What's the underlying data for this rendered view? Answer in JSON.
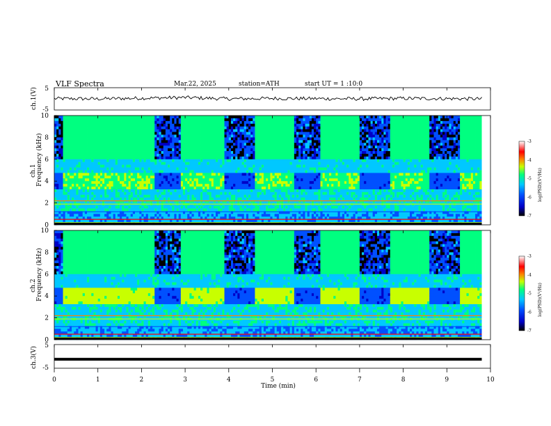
{
  "header": {
    "title": "VLF Spectra",
    "date": "Mar.22, 2025",
    "station": "station=ATH",
    "start": "start UT =  1 :10:0"
  },
  "chart_data": [
    {
      "type": "line",
      "name": "ch1-waveform",
      "ylabel": "ch.1(V)",
      "ylim": [
        -5,
        5
      ],
      "yticks": [
        "5",
        "-5"
      ],
      "xlim": [
        0,
        10
      ],
      "x": [
        0,
        1,
        2,
        3,
        4,
        5,
        6,
        7,
        8,
        9,
        9.8
      ],
      "y": [
        0.1,
        0.0,
        0.3,
        0.6,
        0.0,
        0.2,
        0.1,
        0.0,
        0.2,
        0.1,
        0.0
      ]
    },
    {
      "type": "heatmap",
      "name": "ch1-spectrogram",
      "ylabel_channel": "ch.1",
      "ylabel": "Frequency (kHz)",
      "xlim": [
        0,
        9.8
      ],
      "ylim": [
        0,
        10
      ],
      "yticks": [
        "0",
        "2",
        "4",
        "6",
        "8",
        "10"
      ],
      "colorbar": {
        "label": "log(PSD)(V²/Hz)",
        "range": [
          -7,
          -3
        ],
        "ticks": [
          "-3",
          "-4",
          "-5",
          "-6",
          "-7"
        ]
      },
      "transmitter_on_intervals_min": [
        [
          0.2,
          2.3
        ],
        [
          2.9,
          3.9
        ],
        [
          4.6,
          5.5
        ],
        [
          6.1,
          7.0
        ],
        [
          7.7,
          8.6
        ],
        [
          9.3,
          9.8
        ]
      ]
    },
    {
      "type": "heatmap",
      "name": "ch2-spectrogram",
      "ylabel_channel": "ch.2",
      "ylabel": "Frequency (kHz)",
      "xlim": [
        0,
        9.8
      ],
      "ylim": [
        0,
        10
      ],
      "yticks": [
        "0",
        "2",
        "4",
        "6",
        "8",
        "10"
      ],
      "colorbar": {
        "label": "log(PSD)(V²/Hz)",
        "range": [
          -7,
          -3
        ],
        "ticks": [
          "-3",
          "-4",
          "-5",
          "-6",
          "-7"
        ]
      },
      "transmitter_on_intervals_min": [
        [
          0.2,
          2.3
        ],
        [
          2.9,
          3.9
        ],
        [
          4.6,
          5.5
        ],
        [
          6.1,
          7.0
        ],
        [
          7.7,
          8.6
        ],
        [
          9.3,
          9.8
        ]
      ]
    },
    {
      "type": "line",
      "name": "ch3-waveform",
      "ylabel": "ch.3(V)",
      "ylim": [
        -5,
        5
      ],
      "yticks": [
        "5",
        "-5"
      ],
      "xlim": [
        0,
        10
      ],
      "x": [
        0,
        9.8
      ],
      "y": [
        -1.2,
        -1.2
      ]
    }
  ],
  "xaxis": {
    "label": "Time (min)",
    "ticks": [
      "0",
      "1",
      "2",
      "3",
      "4",
      "5",
      "6",
      "7",
      "8",
      "9",
      "10"
    ]
  },
  "colors": {
    "waveform": "#000000",
    "cmap": [
      "#000000",
      "#0000c8",
      "#0050ff",
      "#00c8ff",
      "#00ff80",
      "#c8ff00",
      "#ff8000",
      "#ff0000",
      "#ffffff"
    ]
  }
}
